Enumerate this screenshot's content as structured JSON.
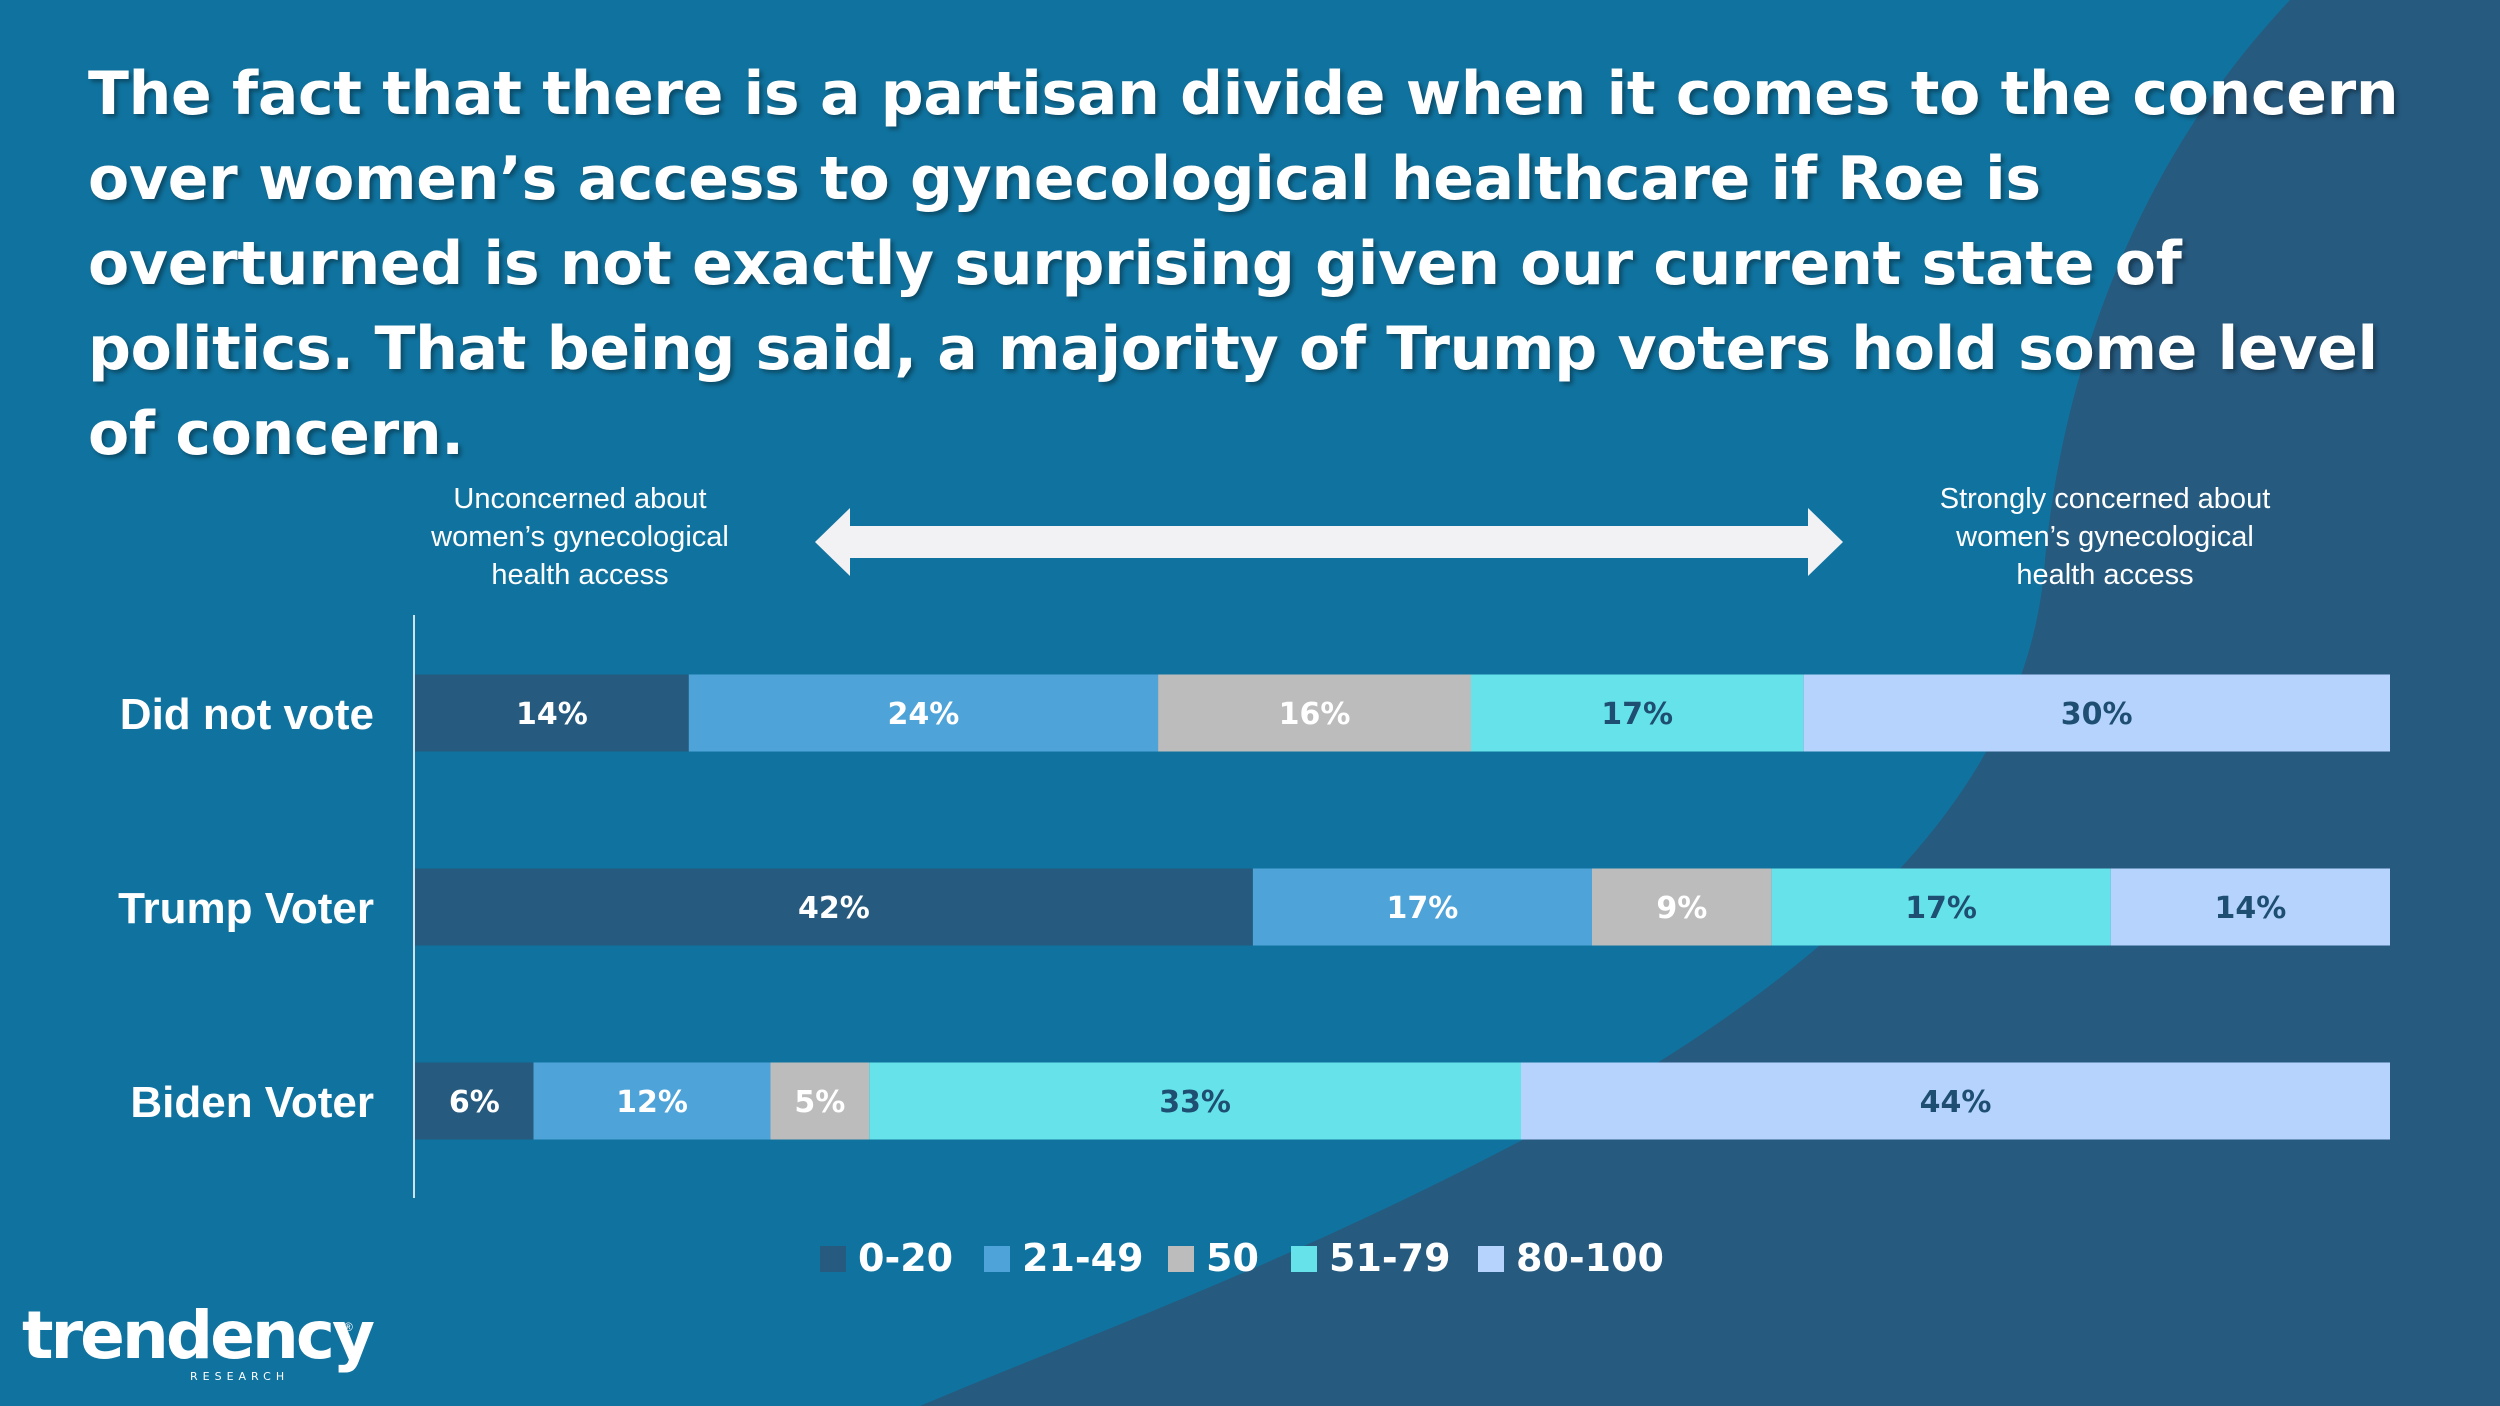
{
  "headline": "The fact that there is a partisan divide when it comes to the concern over women’s access to gynecological healthcare if Roe is overturned is not exactly surprising given our current state of politics. That being said, a majority of Trump voters hold some level of concern.",
  "scale": {
    "left_label": "Unconcerned about women’s gynecological health access",
    "right_label": "Strongly concerned about women’s gynecological health access"
  },
  "colors": {
    "background": "#10739f",
    "wave": "#265a7f",
    "arrow": "#f2f2f4",
    "axis_line": "#cfe3ee"
  },
  "chart_data": {
    "type": "bar",
    "orientation": "horizontal",
    "stacked": true,
    "percent": true,
    "categories": [
      "Did not vote",
      "Trump Voter",
      "Biden Voter"
    ],
    "series": [
      {
        "name": "0-20",
        "color": "#265a7e",
        "label_color": "#ffffff",
        "values": [
          14,
          42,
          6
        ]
      },
      {
        "name": "21-49",
        "color": "#4ea4d9",
        "label_color": "#ffffff",
        "values": [
          24,
          17,
          12
        ]
      },
      {
        "name": "50",
        "color": "#bcbcbc",
        "label_color": "#ffffff",
        "values": [
          16,
          9,
          5
        ]
      },
      {
        "name": "51-79",
        "color": "#66e3ea",
        "label_color": "#1e4e72",
        "values": [
          17,
          17,
          33
        ]
      },
      {
        "name": "80-100",
        "color": "#b5d3fc",
        "label_color": "#1e4e72",
        "values": [
          30,
          14,
          44
        ]
      }
    ],
    "data_labels": [
      [
        "14%",
        "24%",
        "16%",
        "17%",
        "30%"
      ],
      [
        "42%",
        "17%",
        "9%",
        "17%",
        "14%"
      ],
      [
        "6%",
        "12%",
        "5%",
        "33%",
        "44%"
      ]
    ],
    "legend_position": "bottom",
    "xlim": [
      0,
      100
    ]
  },
  "logo": {
    "name": "trendency",
    "subtitle": "RESEARCH",
    "mark": "®"
  }
}
